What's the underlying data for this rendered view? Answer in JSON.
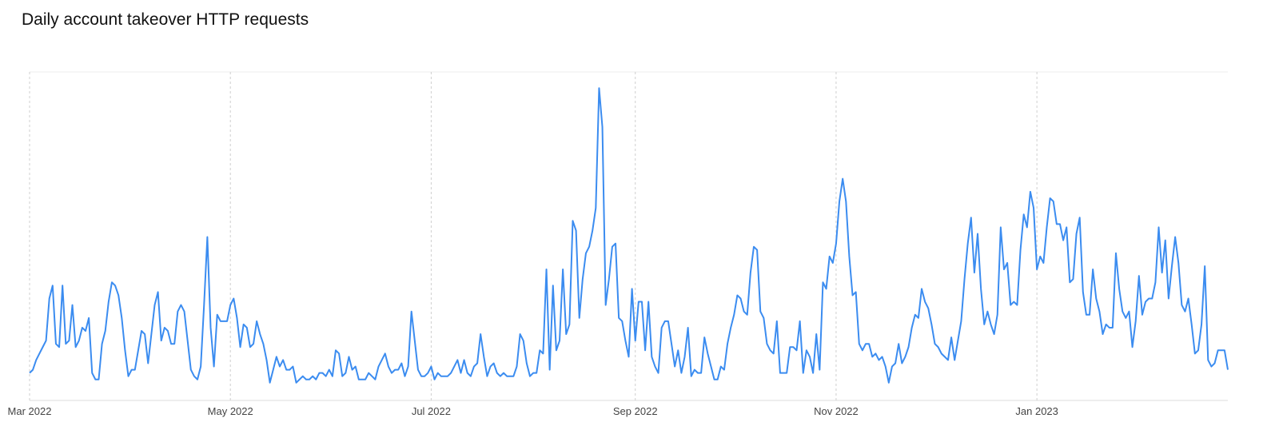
{
  "chart_data": {
    "type": "line",
    "title": "Daily account takeover HTTP requests",
    "xlim": [
      0,
      364
    ],
    "xticks": [
      {
        "value": 0,
        "label": "Mar 2022"
      },
      {
        "value": 61,
        "label": "May 2022"
      },
      {
        "value": 122,
        "label": "Jul 2022"
      },
      {
        "value": 184,
        "label": "Sep 2022"
      },
      {
        "value": 245,
        "label": "Nov 2022"
      },
      {
        "value": 306,
        "label": "Jan 2023"
      }
    ],
    "ylim": [
      0,
      100
    ],
    "grid": true,
    "color": "#3b8cf0",
    "values": [
      7,
      8,
      11,
      13,
      15,
      17,
      30,
      34,
      16,
      15,
      34,
      16,
      17,
      28,
      15,
      17,
      21,
      20,
      24,
      7,
      5,
      5,
      16,
      20,
      29,
      35,
      34,
      31,
      24,
      14,
      6,
      8,
      8,
      14,
      20,
      19,
      10,
      19,
      28,
      32,
      17,
      21,
      20,
      16,
      16,
      26,
      28,
      26,
      17,
      8,
      6,
      5,
      9,
      28,
      49,
      21,
      9,
      25,
      23,
      23,
      23,
      28,
      30,
      24,
      15,
      22,
      21,
      15,
      16,
      23,
      19,
      16,
      11,
      4,
      8,
      12,
      9,
      11,
      8,
      8,
      9,
      4,
      5,
      6,
      5,
      5,
      6,
      5,
      7,
      7,
      6,
      8,
      6,
      14,
      13,
      6,
      7,
      12,
      8,
      9,
      5,
      5,
      5,
      7,
      6,
      5,
      9,
      11,
      13,
      9,
      7,
      8,
      8,
      10,
      6,
      9,
      26,
      17,
      8,
      6,
      6,
      7,
      9,
      5,
      7,
      6,
      6,
      6,
      7,
      9,
      11,
      7,
      11,
      7,
      6,
      9,
      10,
      19,
      12,
      6,
      9,
      10,
      7,
      6,
      7,
      6,
      6,
      6,
      9,
      19,
      17,
      10,
      6,
      7,
      7,
      14,
      13,
      39,
      8,
      34,
      14,
      17,
      39,
      19,
      22,
      54,
      51,
      24,
      36,
      44,
      46,
      51,
      58,
      95,
      83,
      28,
      36,
      46,
      47,
      24,
      23,
      17,
      12,
      33,
      17,
      29,
      29,
      14,
      29,
      12,
      9,
      7,
      21,
      23,
      23,
      16,
      9,
      14,
      7,
      12,
      21,
      6,
      8,
      7,
      7,
      18,
      13,
      9,
      5,
      5,
      9,
      8,
      16,
      21,
      25,
      31,
      30,
      26,
      25,
      38,
      46,
      45,
      26,
      24,
      16,
      14,
      13,
      23,
      7,
      7,
      7,
      15,
      15,
      14,
      23,
      7,
      14,
      12,
      7,
      19,
      8,
      35,
      33,
      43,
      41,
      47,
      60,
      67,
      60,
      43,
      31,
      32,
      16,
      14,
      16,
      16,
      12,
      13,
      11,
      12,
      9,
      4,
      9,
      10,
      16,
      10,
      12,
      15,
      21,
      25,
      24,
      33,
      29,
      27,
      22,
      16,
      15,
      13,
      12,
      11,
      18,
      11,
      17,
      23,
      36,
      47,
      55,
      38,
      50,
      33,
      22,
      26,
      22,
      19,
      25,
      52,
      39,
      41,
      28,
      29,
      28,
      45,
      56,
      52,
      63,
      58,
      39,
      43,
      41,
      52,
      61,
      60,
      53,
      53,
      48,
      52,
      35,
      36,
      50,
      55,
      32,
      25,
      25,
      39,
      30,
      26,
      19,
      22,
      21,
      21,
      44,
      33,
      26,
      24,
      26,
      15,
      23,
      37,
      25,
      29,
      30,
      30,
      35,
      52,
      38,
      48,
      30,
      40,
      49,
      41,
      28,
      26,
      30,
      22,
      13,
      14,
      22,
      40,
      11,
      9,
      10,
      14,
      14,
      14,
      8
    ]
  }
}
